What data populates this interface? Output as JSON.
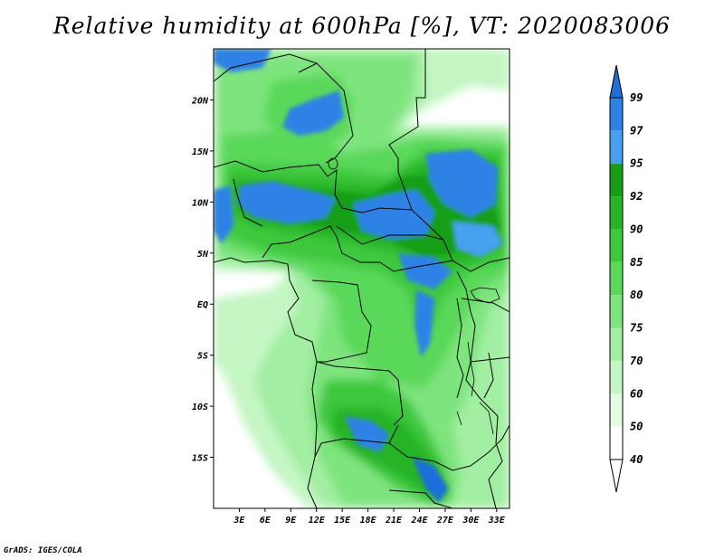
{
  "title": "Relative humidity at 600hPa [%], VT: 2020083006",
  "credit": "GrADS: IGES/COLA",
  "map": {
    "lon_range": [
      0,
      34.5
    ],
    "lat_range": [
      -20,
      25
    ],
    "lat_ticks": [
      {
        "value": 20,
        "label": "20N"
      },
      {
        "value": 15,
        "label": "15N"
      },
      {
        "value": 10,
        "label": "10N"
      },
      {
        "value": 5,
        "label": "5N"
      },
      {
        "value": 0,
        "label": "EQ"
      },
      {
        "value": -5,
        "label": "5S"
      },
      {
        "value": -10,
        "label": "10S"
      },
      {
        "value": -15,
        "label": "15S"
      }
    ],
    "lon_ticks": [
      {
        "value": 3,
        "label": "3E"
      },
      {
        "value": 6,
        "label": "6E"
      },
      {
        "value": 9,
        "label": "9E"
      },
      {
        "value": 12,
        "label": "12E"
      },
      {
        "value": 15,
        "label": "15E"
      },
      {
        "value": 18,
        "label": "18E"
      },
      {
        "value": 21,
        "label": "21E"
      },
      {
        "value": 24,
        "label": "24E"
      },
      {
        "value": 27,
        "label": "27E"
      },
      {
        "value": 30,
        "label": "30E"
      },
      {
        "value": 33,
        "label": "33E"
      }
    ]
  },
  "colorbar": {
    "levels": [
      {
        "label": "99",
        "color": "#1e6ed8"
      },
      {
        "label": "97",
        "color": "#2e82e6"
      },
      {
        "label": "95",
        "color": "#46a0f0"
      },
      {
        "label": "92",
        "color": "#159e15"
      },
      {
        "label": "90",
        "color": "#28b428"
      },
      {
        "label": "85",
        "color": "#3ec83e"
      },
      {
        "label": "80",
        "color": "#5ad85a"
      },
      {
        "label": "75",
        "color": "#7ee47e"
      },
      {
        "label": "70",
        "color": "#a2eea2"
      },
      {
        "label": "60",
        "color": "#c4f6c4"
      },
      {
        "label": "50",
        "color": "#e2fce2"
      },
      {
        "label": "40",
        "color": "#ffffff"
      }
    ],
    "top_color": "#1e6ed8",
    "bottom_color": "#ffffff"
  }
}
